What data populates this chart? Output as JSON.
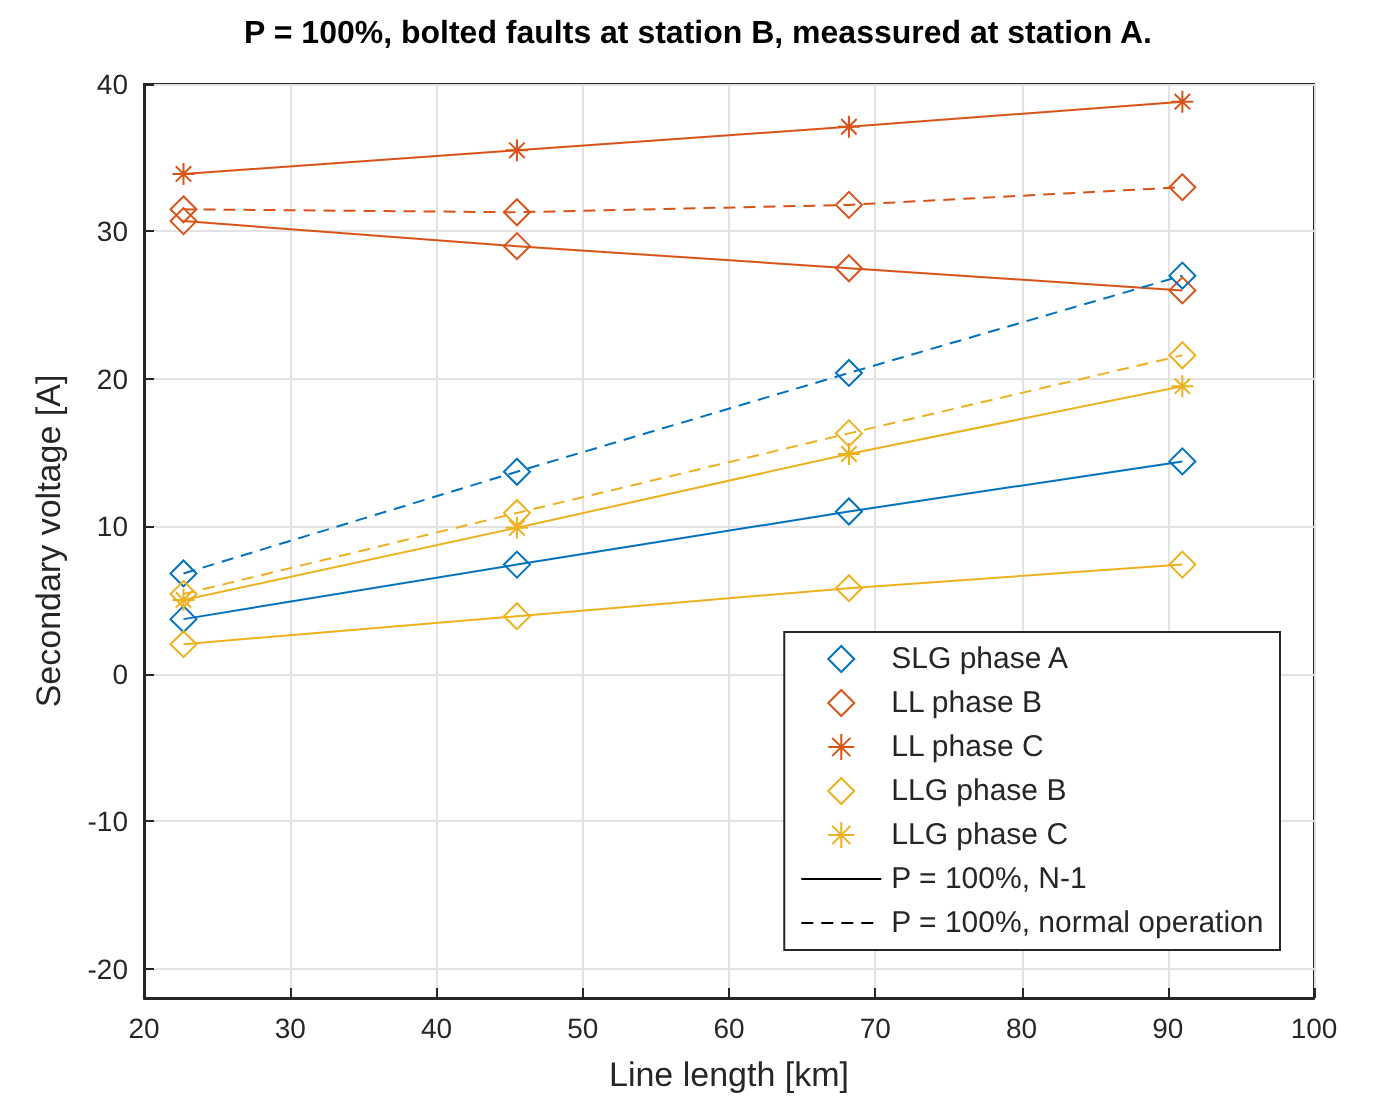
{
  "chart_data": {
    "type": "line",
    "title": "P = 100%, bolted faults at station B, meassured at station A.",
    "xlabel": "Line length [km]",
    "ylabel": "Secondary voltage [A]",
    "x": [
      22.7,
      45.5,
      68.2,
      91
    ],
    "series": [
      {
        "name": "SLG phase A",
        "color": "#0072bd",
        "marker": "diamond",
        "line_style": "solid",
        "values": [
          3.7,
          7.4,
          11,
          14.4
        ]
      },
      {
        "name": "LL phase B",
        "color": "#d95319",
        "marker": "diamond",
        "line_style": "solid",
        "values": [
          30.7,
          29,
          27.5,
          26
        ]
      },
      {
        "name": "LL phase C",
        "color": "#d95319",
        "marker": "cross",
        "line_style": "solid",
        "values": [
          33.9,
          35.5,
          37.1,
          38.8
        ]
      },
      {
        "name": "LLG phase B",
        "color": "#edb120",
        "marker": "diamond",
        "line_style": "solid",
        "values": [
          2,
          3.9,
          5.8,
          7.4
        ]
      },
      {
        "name": "LLG phase C",
        "color": "#edb120",
        "marker": "cross",
        "line_style": "solid",
        "values": [
          5,
          9.9,
          14.9,
          19.5
        ]
      },
      {
        "color": "#0072bd",
        "marker": "diamond",
        "line_style": "dashed",
        "values": [
          6.8,
          13.7,
          20.4,
          27
        ]
      },
      {
        "color": "#d95319",
        "marker": "diamond",
        "line_style": "dashed",
        "values": [
          31.5,
          31.3,
          31.8,
          33
        ]
      },
      {
        "color": "#edb120",
        "marker": "diamond",
        "line_style": "dashed",
        "values": [
          5.4,
          10.9,
          16.3,
          21.6
        ]
      },
      {
        "name": "P = 100%, N-1",
        "color": "#000000",
        "marker": "none",
        "line_style": "solid",
        "values": [
          null,
          null,
          null,
          null
        ]
      },
      {
        "name": "P = 100%, normal operation",
        "color": "#000000",
        "marker": "none",
        "line_style": "dashed",
        "values": [
          null,
          null,
          null,
          null
        ]
      }
    ],
    "xlim": [
      20,
      100
    ],
    "xticks": [
      20,
      30,
      40,
      50,
      60,
      70,
      80,
      90,
      100
    ],
    "ylim": [
      -22,
      40
    ],
    "yticks": [
      -20,
      -10,
      0,
      10,
      20,
      30,
      40
    ],
    "grid": true,
    "legend": "bottom right"
  }
}
